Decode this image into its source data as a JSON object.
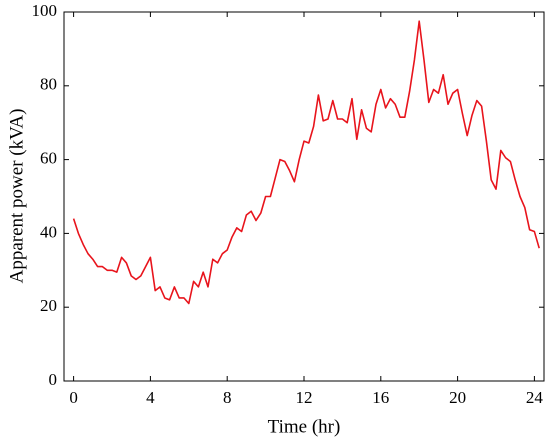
{
  "chart_data": {
    "type": "line",
    "xlabel": "Time (hr)",
    "ylabel": "Apparent power (kVA)",
    "x": [
      0,
      0.25,
      0.5,
      0.75,
      1,
      1.25,
      1.5,
      1.75,
      2,
      2.25,
      2.5,
      2.75,
      3,
      3.25,
      3.5,
      3.75,
      4,
      4.25,
      4.5,
      4.75,
      5,
      5.25,
      5.5,
      5.75,
      6,
      6.25,
      6.5,
      6.75,
      7,
      7.25,
      7.5,
      7.75,
      8,
      8.25,
      8.5,
      8.75,
      9,
      9.25,
      9.5,
      9.75,
      10,
      10.25,
      10.5,
      10.75,
      11,
      11.25,
      11.5,
      11.75,
      12,
      12.25,
      12.5,
      12.75,
      13,
      13.25,
      13.5,
      13.75,
      14,
      14.25,
      14.5,
      14.75,
      15,
      15.25,
      15.5,
      15.75,
      16,
      16.25,
      16.5,
      16.75,
      17,
      17.25,
      17.5,
      17.75,
      18,
      18.25,
      18.5,
      18.75,
      19,
      19.25,
      19.5,
      19.75,
      20,
      20.25,
      20.5,
      20.75,
      21,
      21.25,
      21.5,
      21.75,
      22,
      22.25,
      22.5,
      22.75,
      23,
      23.25,
      23.5,
      23.75,
      24,
      24.25
    ],
    "series": [
      {
        "color": "#e8141c",
        "values": [
          44,
          40,
          37,
          34.5,
          33,
          31,
          31,
          30,
          30,
          29.5,
          33.5,
          32,
          28.5,
          27.5,
          28.5,
          31,
          33.5,
          24.5,
          25.5,
          22.5,
          22,
          25.5,
          22.5,
          22.5,
          21,
          27,
          25.5,
          29.5,
          25.5,
          33,
          32,
          34.5,
          35.5,
          39,
          41.5,
          40.5,
          45,
          46,
          43.5,
          45.5,
          50,
          50,
          55,
          60,
          59.5,
          57,
          54,
          60,
          65,
          64.5,
          69,
          77.5,
          70.5,
          71,
          76,
          71,
          71,
          70,
          76.5,
          65.5,
          73.5,
          68.5,
          67.5,
          75,
          79,
          74,
          76.5,
          75,
          71.5,
          71.5,
          78.5,
          87,
          97.5,
          87,
          75.5,
          79,
          78,
          83,
          75,
          78,
          79,
          72.5,
          66.5,
          72,
          76,
          74.5,
          65,
          54.5,
          52,
          62.5,
          60.5,
          59.5,
          54.5,
          50,
          47,
          41,
          40.5,
          36
        ]
      }
    ],
    "xlim": [
      -0.5,
      24.5
    ],
    "ylim": [
      0,
      100
    ],
    "xticks": [
      0,
      4,
      8,
      12,
      16,
      20,
      24
    ],
    "yticks": [
      0,
      20,
      40,
      60,
      80,
      100
    ]
  }
}
